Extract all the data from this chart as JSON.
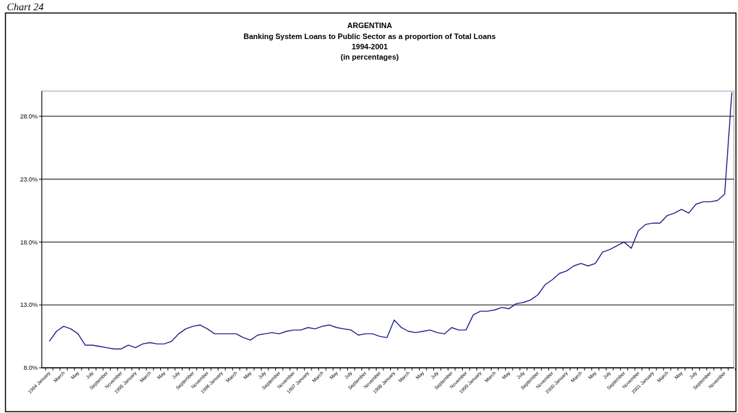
{
  "chart_data": {
    "type": "line",
    "title": "ARGENTINA",
    "subtitle": "Banking System Loans to Public Sector as a proportion of Total Loans\n1994-2001\n(in percentages)",
    "annotations": [
      "Chart 24"
    ],
    "categories": [
      "1994 January",
      null,
      "March",
      null,
      "May",
      null,
      "July",
      null,
      "September",
      null,
      "November",
      null,
      "1995 January",
      null,
      "March",
      null,
      "May",
      null,
      "July",
      null,
      "September",
      null,
      "November",
      null,
      "1996 January",
      null,
      "March",
      null,
      "May",
      null,
      "July",
      null,
      "September",
      null,
      "November",
      null,
      "1997 January",
      null,
      "March",
      null,
      "May",
      null,
      "July",
      null,
      "September",
      null,
      "November",
      null,
      "1998 January",
      null,
      "March",
      null,
      "May",
      null,
      "July",
      null,
      "September",
      null,
      "November",
      null,
      "1999 January",
      null,
      "March",
      null,
      "May",
      null,
      "July",
      null,
      "September",
      null,
      "November",
      null,
      "2000 January",
      null,
      "March",
      null,
      "May",
      null,
      "July",
      null,
      "September",
      null,
      "November",
      null,
      "2001 January",
      null,
      "March",
      null,
      "May",
      null,
      "July",
      null,
      "September",
      null,
      "November",
      null
    ],
    "series": [
      {
        "color": "#1c1c8c",
        "values": [
          10.1,
          10.9,
          11.3,
          11.1,
          10.7,
          9.8,
          9.8,
          9.7,
          9.6,
          9.5,
          9.5,
          9.8,
          9.6,
          9.9,
          10.0,
          9.9,
          9.9,
          10.1,
          10.7,
          11.1,
          11.3,
          11.4,
          11.1,
          10.7,
          10.7,
          10.7,
          10.7,
          10.4,
          10.2,
          10.6,
          10.7,
          10.8,
          10.7,
          10.9,
          11.0,
          11.0,
          11.2,
          11.1,
          11.3,
          11.4,
          11.2,
          11.1,
          11.0,
          10.6,
          10.7,
          10.7,
          10.5,
          10.4,
          11.8,
          11.2,
          10.9,
          10.8,
          10.9,
          11.0,
          10.8,
          10.7,
          11.2,
          11.0,
          11.0,
          12.2,
          12.5,
          12.5,
          12.6,
          12.8,
          12.7,
          13.1,
          13.2,
          13.4,
          13.8,
          14.6,
          15.0,
          15.5,
          15.7,
          16.1,
          16.3,
          16.1,
          16.3,
          17.2,
          17.4,
          17.7,
          18.0,
          17.5,
          18.9,
          19.4,
          19.5,
          19.5,
          20.1,
          20.3,
          20.6,
          20.3,
          21.0,
          21.2,
          21.2,
          21.3,
          21.8,
          29.9
        ]
      }
    ],
    "ylim": [
      8,
      30
    ],
    "yticks": [
      {
        "value": 8,
        "label": "8.0%"
      },
      {
        "value": 13,
        "label": "13.0%"
      },
      {
        "value": 18,
        "label": "18.0%"
      },
      {
        "value": 23,
        "label": "23.0%"
      },
      {
        "value": 28,
        "label": "28.0%"
      }
    ],
    "grid": "y",
    "marker": "none",
    "line_style": "solid"
  }
}
